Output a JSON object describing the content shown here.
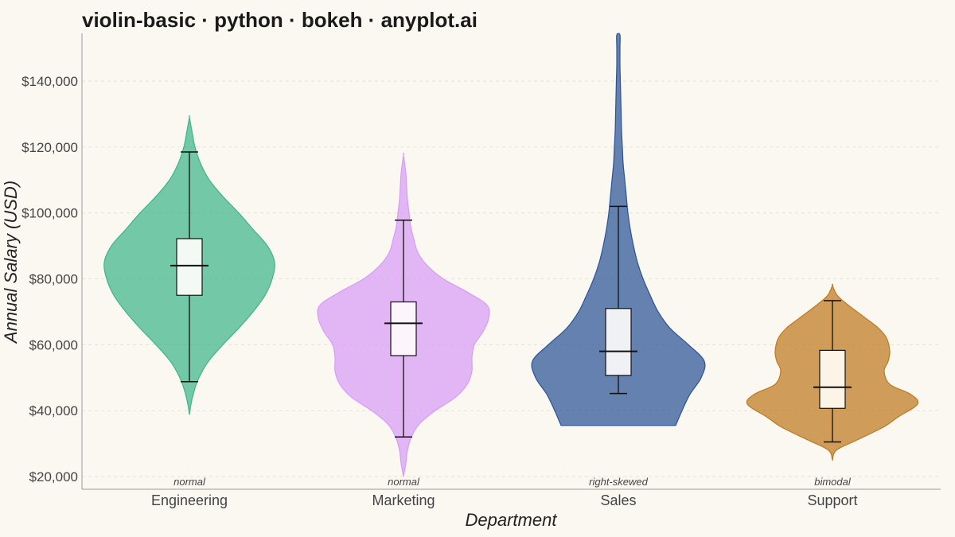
{
  "chart_data": {
    "type": "violin",
    "title": "violin-basic · python · bokeh · anyplot.ai",
    "xlabel": "Department",
    "ylabel": "Annual Salary (USD)",
    "ylim": [
      16000,
      155000
    ],
    "yticks": [
      20000,
      40000,
      60000,
      80000,
      100000,
      120000,
      140000
    ],
    "ytick_labels": [
      "$20,000",
      "$40,000",
      "$60,000",
      "$80,000",
      "$100,000",
      "$120,000",
      "$140,000"
    ],
    "grid": "horizontal dashed",
    "categories": [
      "Engineering",
      "Marketing",
      "Sales",
      "Support"
    ],
    "annotations": [
      "normal",
      "normal",
      "right-skewed",
      "bimodal"
    ],
    "colors": [
      "#3FB58A",
      "#D89CF6",
      "#2B5397",
      "#BE7A1E"
    ],
    "box_fill": [
      "#F3FAF5",
      "#FCF5FB",
      "#F0F1F4",
      "#FCF4E7"
    ],
    "stats": [
      {
        "min": 48800,
        "q1": 75000,
        "median": 84000,
        "q3": 92200,
        "max": 118500
      },
      {
        "min": 32000,
        "q1": 56700,
        "median": 66500,
        "q3": 73000,
        "max": 97800
      },
      {
        "min": 45200,
        "q1": 50700,
        "median": 58000,
        "q3": 71000,
        "max": 102000
      },
      {
        "min": 30500,
        "q1": 40700,
        "median": 47100,
        "q3": 58300,
        "max": 73400
      }
    ],
    "violins": [
      {
        "y": [
          38800,
          42000,
          46000,
          50000,
          55000,
          60000,
          65000,
          70000,
          75000,
          80000,
          85000,
          90000,
          95000,
          100000,
          105000,
          110000,
          115000,
          120000,
          125000,
          129000
        ],
        "half_width": [
          0,
          2,
          6,
          12,
          24,
          42,
          62,
          80,
          95,
          104,
          107,
          98,
          80,
          62,
          42,
          25,
          14,
          7,
          3,
          0
        ]
      },
      {
        "y": [
          20000,
          24000,
          28000,
          32000,
          36000,
          40000,
          44000,
          48000,
          52000,
          56000,
          60000,
          64000,
          68000,
          72000,
          76000,
          80000,
          84000,
          88000,
          92000,
          96000,
          100000,
          104000,
          108000,
          112000,
          117500
        ],
        "half_width": [
          0,
          3,
          5,
          10,
          20,
          40,
          65,
          80,
          86,
          86,
          89,
          100,
          107,
          105,
          80,
          50,
          30,
          18,
          13,
          9,
          7,
          5,
          4,
          3,
          0
        ]
      },
      {
        "y": [
          35500,
          40000,
          45000,
          50000,
          55000,
          60000,
          65000,
          70000,
          75000,
          80000,
          85000,
          90000,
          95000,
          100000,
          105000,
          110000,
          115000,
          120000,
          125000,
          130000,
          135000,
          140000,
          145000,
          150000,
          154000
        ],
        "half_width": [
          72,
          80,
          90,
          104,
          108,
          88,
          65,
          50,
          40,
          31,
          24,
          19,
          15,
          12,
          10,
          8,
          6,
          5,
          4,
          3.5,
          3,
          2.5,
          2,
          2,
          2
        ]
      },
      {
        "y": [
          25000,
          28000,
          31000,
          35000,
          38000,
          42000,
          45000,
          48000,
          52000,
          55000,
          58000,
          62000,
          65000,
          68000,
          72000,
          75000,
          78000
        ],
        "half_width": [
          0,
          5,
          30,
          64,
          82,
          107,
          98,
          72,
          65,
          70,
          72,
          68,
          58,
          42,
          20,
          6,
          0
        ]
      }
    ]
  }
}
